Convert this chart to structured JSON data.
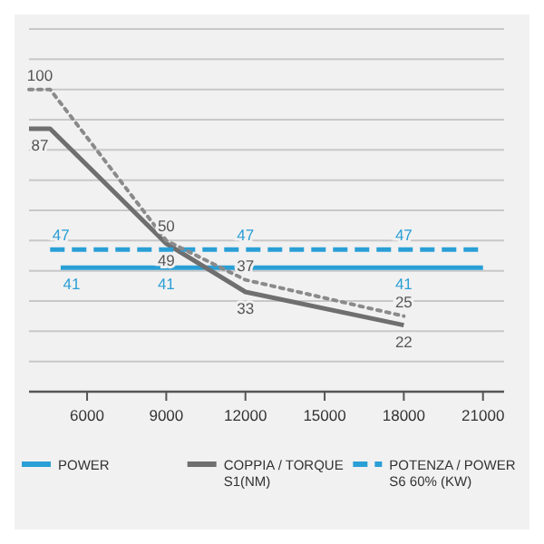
{
  "chart_data": {
    "type": "line",
    "xlim": [
      3800,
      21800
    ],
    "xticks": [
      6000,
      9000,
      12000,
      15000,
      18000,
      21000
    ],
    "ylim": [
      0,
      120
    ],
    "yticks": [
      {
        "value": 10,
        "label": null
      },
      {
        "value": 20,
        "label": null
      },
      {
        "value": 30,
        "label": null
      },
      {
        "value": 40,
        "label": null
      },
      {
        "value": 50,
        "label": null
      },
      {
        "value": 60,
        "label": null
      },
      {
        "value": 70,
        "label": null
      },
      {
        "value": 80,
        "label": null
      },
      {
        "value": 90,
        "label": null
      },
      {
        "value": 100,
        "label": null
      },
      {
        "value": 110,
        "label": null
      },
      {
        "value": 120,
        "label": null
      }
    ],
    "grid": "y",
    "tick_labels": "x",
    "legend": "bottom",
    "marker": "none",
    "series": [
      {
        "name": "POWER",
        "color": "#2a9fd6",
        "line_style": "solid",
        "x": [
          5000,
          9000,
          18000,
          21000
        ],
        "values": [
          41,
          41,
          41,
          41
        ],
        "value_labels": [
          "41",
          "41",
          "41",
          null
        ]
      },
      {
        "name": "COPPIA / TORQUE S1(NM)",
        "color": "#6f6f6f",
        "line_style": "solid",
        "x": [
          3800,
          4600,
          9000,
          12000,
          18000
        ],
        "values": [
          87,
          87,
          49,
          33,
          22
        ],
        "value_labels": [
          "87",
          null,
          "49",
          "33",
          "22"
        ]
      },
      {
        "name": "POTENZA / POWER S6 60% (KW)",
        "color": "#2a9fd6",
        "line_style": "dashed",
        "x": [
          4600,
          12000,
          18000,
          21000
        ],
        "values": [
          47,
          47,
          47,
          47
        ],
        "value_labels": [
          "47",
          "47",
          "47",
          null
        ]
      },
      {
        "color": "#8a8a8a",
        "line_style": "dotted",
        "x": [
          3800,
          4600,
          9000,
          12000,
          18000
        ],
        "values": [
          100,
          100,
          50,
          37,
          25
        ],
        "value_labels": [
          "100",
          null,
          "50",
          "37",
          "25"
        ]
      }
    ]
  }
}
